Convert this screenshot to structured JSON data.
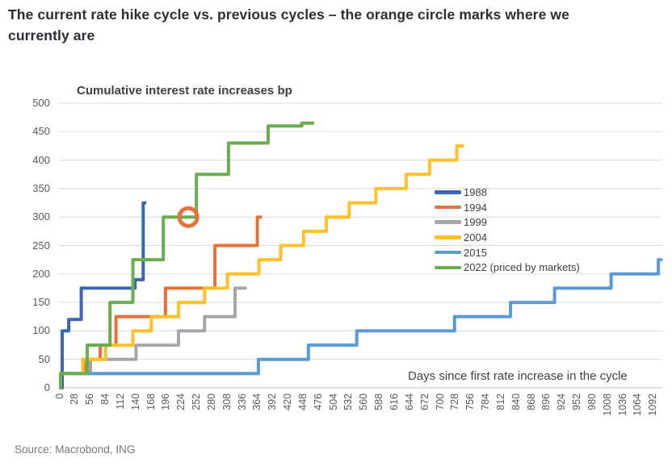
{
  "page": {
    "title": "The current rate hike cycle vs. previous cycles – the orange circle marks where we currently are",
    "source": "Source: Macrobond, ING"
  },
  "chart_data": {
    "type": "line",
    "subtype": "step",
    "title": "Cumulative interest rate increases bp",
    "xlabel": "Days since first rate increase in the cycle",
    "ylabel": "Cumulative interest rate increases bp",
    "xlim": [
      0,
      1120
    ],
    "ylim": [
      0,
      500
    ],
    "grid": "horizontal",
    "legend_position": "middle-right-inside",
    "x_ticks": [
      0,
      28,
      56,
      84,
      112,
      140,
      168,
      196,
      224,
      252,
      280,
      308,
      336,
      364,
      392,
      420,
      448,
      476,
      504,
      532,
      560,
      588,
      616,
      644,
      672,
      700,
      728,
      756,
      784,
      812,
      840,
      868,
      896,
      924,
      952,
      980,
      1008,
      1036,
      1064,
      1092
    ],
    "y_ticks": [
      0,
      50,
      100,
      150,
      200,
      250,
      300,
      350,
      400,
      450,
      500
    ],
    "series": [
      {
        "name": "1988",
        "color": "#3b67ae",
        "end_day": 155,
        "points": [
          [
            0,
            0
          ],
          [
            3,
            100
          ],
          [
            15,
            120
          ],
          [
            38,
            175
          ],
          [
            137,
            190
          ],
          [
            152,
            325
          ]
        ]
      },
      {
        "name": "1994",
        "color": "#e8713a",
        "end_day": 368,
        "points": [
          [
            0,
            0
          ],
          [
            0,
            25
          ],
          [
            46,
            50
          ],
          [
            73,
            75
          ],
          [
            102,
            125
          ],
          [
            193,
            175
          ],
          [
            284,
            250
          ],
          [
            362,
            300
          ]
        ]
      },
      {
        "name": "1999",
        "color": "#a6a6a6",
        "end_day": 340,
        "points": [
          [
            0,
            0
          ],
          [
            0,
            25
          ],
          [
            55,
            50
          ],
          [
            139,
            75
          ],
          [
            217,
            100
          ],
          [
            265,
            125
          ],
          [
            321,
            175
          ]
        ]
      },
      {
        "name": "2004",
        "color": "#ffc02b",
        "end_day": 740,
        "points": [
          [
            0,
            0
          ],
          [
            0,
            25
          ],
          [
            41,
            50
          ],
          [
            83,
            75
          ],
          [
            133,
            100
          ],
          [
            167,
            125
          ],
          [
            217,
            150
          ],
          [
            265,
            175
          ],
          [
            307,
            200
          ],
          [
            365,
            225
          ],
          [
            405,
            250
          ],
          [
            447,
            275
          ],
          [
            489,
            300
          ],
          [
            531,
            325
          ],
          [
            580,
            350
          ],
          [
            636,
            375
          ],
          [
            679,
            400
          ],
          [
            729,
            425
          ]
        ]
      },
      {
        "name": "2015",
        "color": "#5b9bd5",
        "end_day": 1105,
        "points": [
          [
            0,
            0
          ],
          [
            0,
            25
          ],
          [
            364,
            50
          ],
          [
            456,
            75
          ],
          [
            545,
            100
          ],
          [
            725,
            125
          ],
          [
            828,
            150
          ],
          [
            909,
            175
          ],
          [
            1013,
            200
          ],
          [
            1100,
            225
          ]
        ]
      },
      {
        "name": "2022 (priced by markets)",
        "color": "#6bac4e",
        "end_day": 464,
        "points": [
          [
            0,
            0
          ],
          [
            0,
            25
          ],
          [
            49,
            75
          ],
          [
            91,
            150
          ],
          [
            133,
            225
          ],
          [
            189,
            300
          ],
          [
            250,
            375
          ],
          [
            309,
            430
          ],
          [
            382,
            460
          ],
          [
            444,
            465
          ]
        ]
      }
    ],
    "marker": {
      "label": "orange circle - where we currently are",
      "day": 235,
      "value": 300,
      "color": "#e8713a"
    }
  }
}
